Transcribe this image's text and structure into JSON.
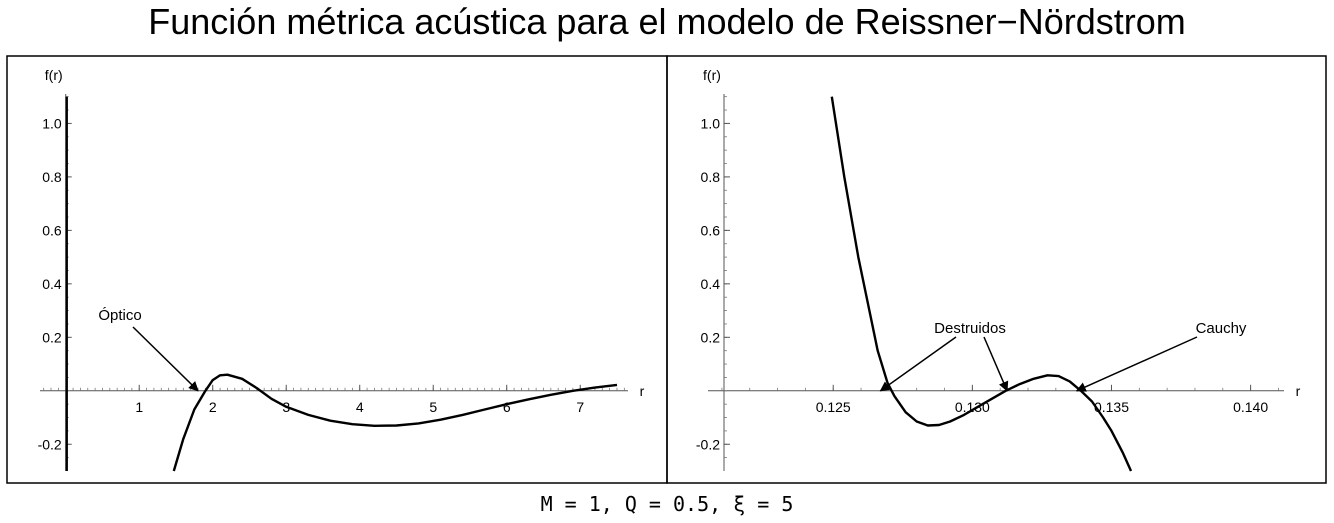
{
  "title": "Función métrica acústica para el modelo de Reissner−Nördstrom",
  "caption": "M = 1, Q = 0.5, ξ = 5",
  "chart_data": [
    {
      "type": "line",
      "xlabel": "r",
      "ylabel": "f(r)",
      "xlim": [
        -0.35,
        7.65
      ],
      "ylim": [
        -0.3,
        1.11
      ],
      "xticks": [
        1,
        2,
        3,
        4,
        5,
        6,
        7
      ],
      "xtick_labels": [
        "1",
        "2",
        "3",
        "4",
        "5",
        "6",
        "7"
      ],
      "yticks": [
        -0.2,
        0.2,
        0.4,
        0.6,
        0.8,
        1.0
      ],
      "ytick_labels": [
        "-0.2",
        "0.2",
        "0.4",
        "0.6",
        "0.8",
        "1.0"
      ],
      "spike": {
        "x": 0.0,
        "y_range": [
          -0.3,
          1.1
        ]
      },
      "series": [
        {
          "x": [
            1.47,
            1.6,
            1.75,
            1.9,
            2.0,
            2.1,
            2.2,
            2.4,
            2.6,
            2.8,
            3.0,
            3.3,
            3.6,
            3.9,
            4.2,
            4.5,
            4.8,
            5.1,
            5.4,
            5.7,
            6.0,
            6.3,
            6.6,
            6.9,
            7.2,
            7.5
          ],
          "y": [
            -0.3,
            -0.18,
            -0.07,
            0.0,
            0.04,
            0.058,
            0.06,
            0.045,
            0.01,
            -0.03,
            -0.06,
            -0.09,
            -0.112,
            -0.125,
            -0.131,
            -0.13,
            -0.122,
            -0.108,
            -0.09,
            -0.07,
            -0.05,
            -0.032,
            -0.015,
            0.0,
            0.012,
            0.022
          ]
        }
      ],
      "annotations": [
        {
          "text": "Óptico",
          "x": 1.8,
          "y": 0.0
        }
      ]
    },
    {
      "type": "line",
      "xlabel": "r",
      "ylabel": "f(r)",
      "xlim": [
        0.1205,
        0.1412
      ],
      "ylim": [
        -0.3,
        1.11
      ],
      "xticks": [
        0.125,
        0.13,
        0.135,
        0.14
      ],
      "xtick_labels": [
        "0.125",
        "0.130",
        "0.135",
        "0.140"
      ],
      "yticks": [
        -0.2,
        0.2,
        0.4,
        0.6,
        0.8,
        1.0
      ],
      "ytick_labels": [
        "-0.2",
        "0.2",
        "0.4",
        "0.6",
        "0.8",
        "1.0"
      ],
      "series": [
        {
          "x": [
            0.12495,
            0.1254,
            0.1259,
            0.1263,
            0.1266,
            0.12695,
            0.1272,
            0.1276,
            0.128,
            0.1284,
            0.1288,
            0.1292,
            0.1297,
            0.1302,
            0.1307,
            0.1312,
            0.1317,
            0.1322,
            0.1327,
            0.1331,
            0.1335,
            0.1339,
            0.1343,
            0.1347,
            0.135,
            0.1354,
            0.1357
          ],
          "y": [
            1.1,
            0.8,
            0.5,
            0.3,
            0.15,
            0.03,
            -0.02,
            -0.08,
            -0.115,
            -0.13,
            -0.128,
            -0.115,
            -0.09,
            -0.06,
            -0.03,
            0.0,
            0.025,
            0.045,
            0.058,
            0.055,
            0.035,
            0.0,
            -0.04,
            -0.1,
            -0.15,
            -0.23,
            -0.3
          ]
        }
      ],
      "annotations": [
        {
          "text": "Destruidos",
          "x": 0.1267,
          "y": 0.0
        },
        {
          "text": "Destruidos",
          "x": 0.13125,
          "y": 0.0
        },
        {
          "text": "Cauchy",
          "x": 0.13375,
          "y": 0.0
        }
      ]
    }
  ]
}
